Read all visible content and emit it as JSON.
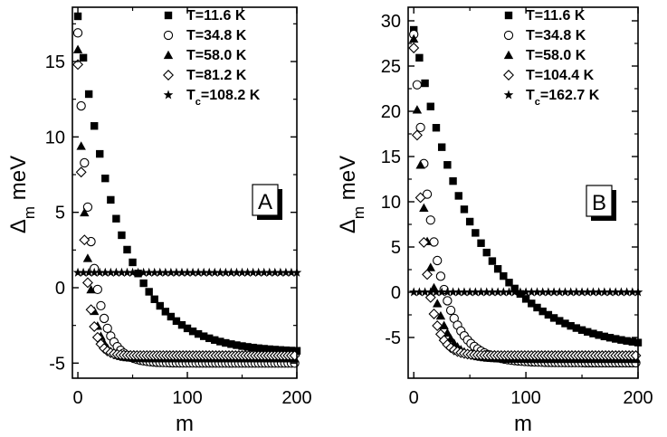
{
  "chart_data": [
    {
      "type": "scatter",
      "panel_label": "A",
      "xlabel": "m",
      "ylabel_main": "Δ",
      "ylabel_sub": "m",
      "ylabel_rest": " meV",
      "xlim": [
        -5,
        200
      ],
      "ylim": [
        -6,
        18.6
      ],
      "xticks": [
        "0",
        "100",
        "200"
      ],
      "xtick_values": [
        0,
        100,
        200
      ],
      "yticks": [
        "-5",
        "0",
        "5",
        "10",
        "15"
      ],
      "ytick_values": [
        -5,
        0,
        5,
        10,
        15
      ],
      "legend_position": "top-right",
      "series": [
        {
          "name_main": "T=11.6 K",
          "name_sub": "",
          "name_rest": "",
          "marker": "square",
          "model": {
            "a": 18.0,
            "b": -4.3,
            "tau": 38,
            "step": 5
          }
        },
        {
          "name_main": "T=34.8 K",
          "name_sub": "",
          "name_rest": "",
          "marker": "circle",
          "model": {
            "a": 16.9,
            "b": -5.0,
            "tau": 12,
            "step": 3
          }
        },
        {
          "name_main": "T=58.0 K",
          "name_sub": "",
          "name_rest": "",
          "marker": "triangle",
          "model": {
            "a": 15.8,
            "b": -4.7,
            "tau": 8,
            "step": 3
          }
        },
        {
          "name_main": "T=81.2 K",
          "name_sub": "",
          "name_rest": "",
          "marker": "diamond",
          "model": {
            "a": 14.8,
            "b": -4.5,
            "tau": 6.5,
            "step": 3
          }
        },
        {
          "name_main": "T",
          "name_sub": "c",
          "name_rest": "=108.2 K",
          "marker": "star",
          "model": {
            "a": 1.0,
            "b": 1.0,
            "tau": 10,
            "step": 5
          }
        }
      ]
    },
    {
      "type": "scatter",
      "panel_label": "B",
      "xlabel": "m",
      "ylabel_main": "Δ",
      "ylabel_sub": "m",
      "ylabel_rest": " meV",
      "xlim": [
        -5,
        200
      ],
      "ylim": [
        -9.5,
        31.5
      ],
      "xticks": [
        "0",
        "100",
        "200"
      ],
      "xtick_values": [
        0,
        100,
        200
      ],
      "yticks": [
        "-5",
        "0",
        "5",
        "10",
        "15",
        "20",
        "25",
        "30"
      ],
      "ytick_values": [
        -5,
        0,
        5,
        10,
        15,
        20,
        25,
        30
      ],
      "legend_position": "top-right",
      "series": [
        {
          "name_main": "T=11.6 K",
          "name_sub": "",
          "name_rest": "",
          "marker": "square",
          "model": {
            "a": 29.0,
            "b": -6.5,
            "tau": 55,
            "step": 5
          }
        },
        {
          "name_main": "T=34.8 K",
          "name_sub": "",
          "name_rest": "",
          "marker": "circle",
          "model": {
            "a": 28.5,
            "b": -7.8,
            "tau": 18,
            "step": 3
          }
        },
        {
          "name_main": "T=58.0 K",
          "name_sub": "",
          "name_rest": "",
          "marker": "triangle",
          "model": {
            "a": 28.0,
            "b": -7.4,
            "tau": 12,
            "step": 3
          }
        },
        {
          "name_main": "T=104.4 K",
          "name_sub": "",
          "name_rest": "",
          "marker": "diamond",
          "model": {
            "a": 27.0,
            "b": -7.0,
            "tau": 9,
            "step": 3
          }
        },
        {
          "name_main": "T",
          "name_sub": "c",
          "name_rest": "=162.7 K",
          "marker": "star",
          "model": {
            "a": 0.0,
            "b": 0.0,
            "tau": 10,
            "step": 5
          }
        }
      ]
    }
  ]
}
